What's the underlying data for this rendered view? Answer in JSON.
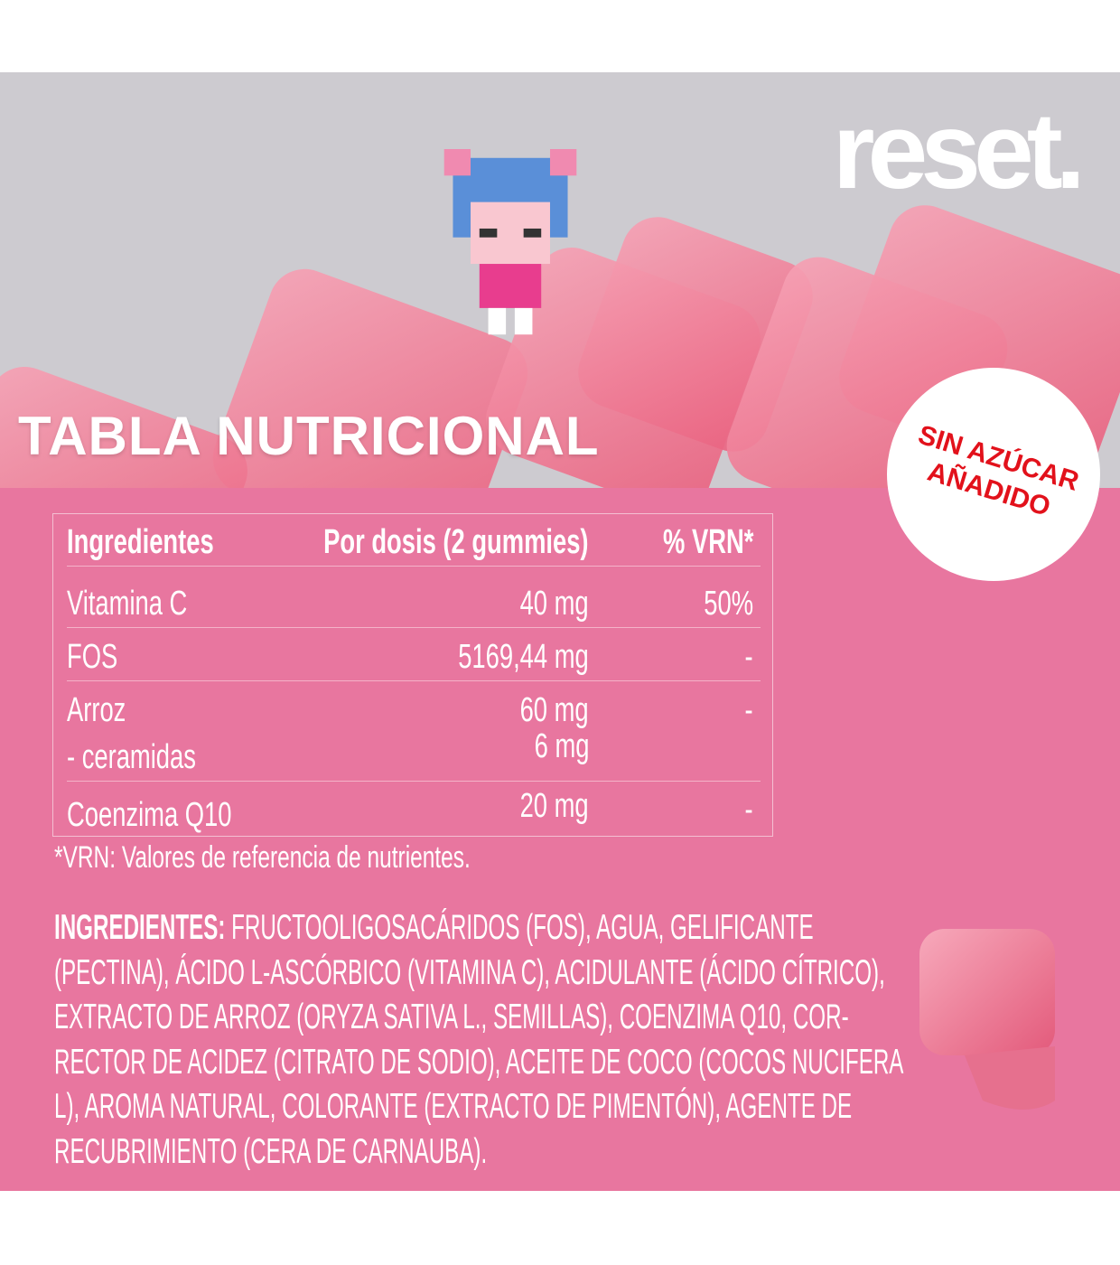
{
  "brand": {
    "logo": "reset."
  },
  "title": "TABLA NUTRICIONAL",
  "badge": {
    "line1": "SIN AZÚCAR",
    "line2": "AÑADIDO"
  },
  "table": {
    "headers": [
      "Ingredientes",
      "Por dosis (2 gummies)",
      "% VRN*"
    ],
    "rows": [
      [
        "Vitamina C",
        "40 mg",
        "50%"
      ],
      [
        "FOS",
        "5169,44 mg",
        "-"
      ],
      [
        "Arroz",
        "60 mg",
        "-"
      ],
      [
        "- ceramidas",
        "6 mg",
        ""
      ],
      [
        "Coenzima Q10",
        "20 mg",
        "-"
      ]
    ],
    "footnote": "*VRN: Valores de referencia de nutrientes."
  },
  "ingredients": {
    "label": "INGREDIENTES:",
    "lines": [
      " FRUCTOOLIGOSACÁRIDOS (FOS), AGUA, GELIFICANTE",
      "(PECTINA), ÁCIDO L-ASCÓRBICO (VITAMINA C), ACIDULANTE (ÁCIDO CÍTRICO),",
      "EXTRACTO DE ARROZ (ORYZA SATIVA L., SEMILLAS), COENZIMA Q10, COR-",
      "RECTOR DE ACIDEZ (CITRATO DE SODIO), ACEITE DE COCO (COCOS NUCIFERA",
      "L), AROMA NATURAL, COLORANTE (EXTRACTO DE PIMENTÓN), AGENTE DE",
      "RECUBRIMIENTO (CERA DE CARNAUBA)."
    ]
  },
  "colors": {
    "panel": "#e8769f",
    "hero": "#cdcbd0",
    "badge_text": "#e2111b"
  }
}
